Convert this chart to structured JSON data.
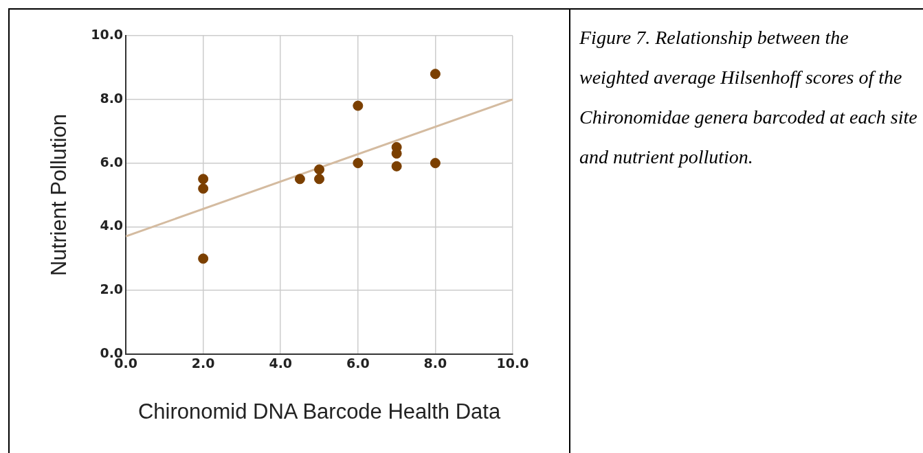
{
  "chart_data": {
    "type": "scatter",
    "xlabel": "Chironomid DNA Barcode Health Data",
    "ylabel": "Nutrient Pollution",
    "annotations": [
      "Figure 7. Relationship between the weighted average Hilsenhoff scores of the Chironomidae genera barcoded at each site and nutrient pollution."
    ],
    "xlim": [
      0,
      10
    ],
    "ylim": [
      0,
      10
    ],
    "xticks": [
      {
        "value": 0,
        "label": "0.0"
      },
      {
        "value": 2,
        "label": "2.0"
      },
      {
        "value": 4,
        "label": "4.0"
      },
      {
        "value": 6,
        "label": "6.0"
      },
      {
        "value": 8,
        "label": "8.0"
      },
      {
        "value": 10,
        "label": "10.0"
      }
    ],
    "yticks": [
      {
        "value": 0,
        "label": "0.0"
      },
      {
        "value": 2,
        "label": "2.0"
      },
      {
        "value": 4,
        "label": "4.0"
      },
      {
        "value": 6,
        "label": "6.0"
      },
      {
        "value": 8,
        "label": "8.0"
      },
      {
        "value": 10,
        "label": "10.0"
      }
    ],
    "grid": true,
    "marker": "circle",
    "series": [
      {
        "color": "#7b3f00",
        "x": [
          2,
          2,
          2,
          4.5,
          5,
          5,
          6,
          6,
          7,
          7,
          7,
          8,
          8
        ],
        "values": [
          5.5,
          5.2,
          3.0,
          5.5,
          5.8,
          5.5,
          7.8,
          6.0,
          6.5,
          6.3,
          5.9,
          8.8,
          6.0
        ]
      },
      {
        "type": "line",
        "color": "#d4bba0",
        "marker": "none",
        "x": [
          0,
          10
        ],
        "values": [
          3.7,
          8.0
        ]
      }
    ]
  }
}
